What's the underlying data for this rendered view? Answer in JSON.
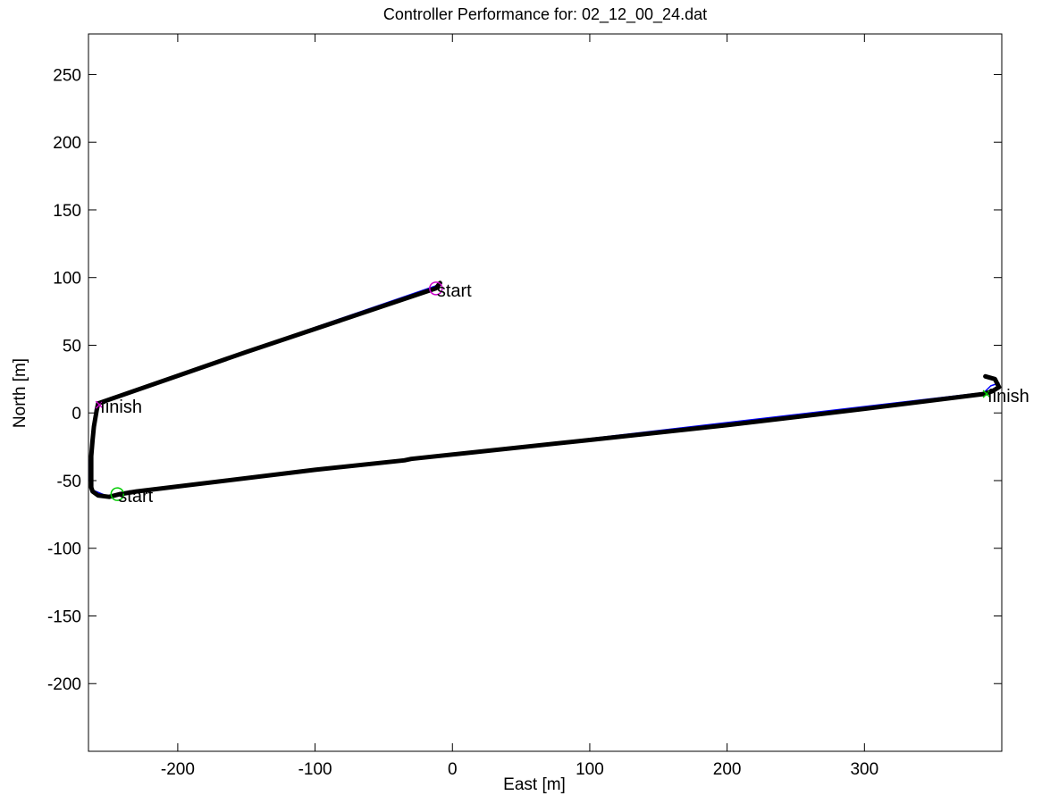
{
  "chart_data": {
    "type": "line",
    "title": "Controller Performance for: 02_12_00_24.dat",
    "xlabel": "East [m]",
    "ylabel": "North [m]",
    "xlim": [
      -265,
      400
    ],
    "ylim": [
      -250,
      280
    ],
    "xticks": [
      -200,
      -100,
      0,
      100,
      200,
      300
    ],
    "yticks": [
      250,
      200,
      150,
      100,
      50,
      0,
      -50,
      -100,
      -150,
      -200
    ],
    "grid": false,
    "series": [
      {
        "role": "reference",
        "color": "#0000ff",
        "points": [
          [
            -9,
            95
          ],
          [
            -258,
            8
          ],
          [
            -260,
            3
          ],
          [
            -262,
            -20
          ],
          [
            -264,
            -35
          ],
          [
            -264,
            -50
          ],
          [
            -262,
            -57
          ],
          [
            -250,
            -62
          ],
          [
            -230,
            -58
          ],
          [
            387,
            15
          ],
          [
            392,
            20
          ],
          [
            398,
            22
          ]
        ]
      },
      {
        "role": "actual",
        "color": "#000000",
        "points": [
          [
            -9,
            96
          ],
          [
            -12,
            92
          ],
          [
            -150,
            45
          ],
          [
            -258,
            7
          ],
          [
            -259,
            2
          ],
          [
            -261,
            -10
          ],
          [
            -262,
            -20
          ],
          [
            -263,
            -32
          ],
          [
            -263,
            -45
          ],
          [
            -263,
            -55
          ],
          [
            -262,
            -58
          ],
          [
            -258,
            -61
          ],
          [
            -250,
            -62
          ],
          [
            -242,
            -60
          ],
          [
            -230,
            -58
          ],
          [
            -100,
            -42
          ],
          [
            -35,
            -35
          ],
          [
            -30,
            -34
          ],
          [
            100,
            -20
          ],
          [
            200,
            -9
          ],
          [
            300,
            3
          ],
          [
            387,
            14
          ],
          [
            393,
            16
          ],
          [
            398,
            19
          ],
          [
            395,
            25
          ],
          [
            388,
            27
          ]
        ]
      }
    ],
    "markers": [
      {
        "label": "start",
        "x": -12,
        "y": 92,
        "color": "#cc00cc",
        "symbol": "circle"
      },
      {
        "label": "finish",
        "x": -257,
        "y": 6,
        "color": "#cc00cc",
        "symbol": "x"
      },
      {
        "label": "start",
        "x": -244,
        "y": -60,
        "color": "#00cc00",
        "symbol": "circle"
      },
      {
        "label": "finish",
        "x": 389,
        "y": 14,
        "color": "#00cc00",
        "symbol": "x"
      }
    ]
  }
}
